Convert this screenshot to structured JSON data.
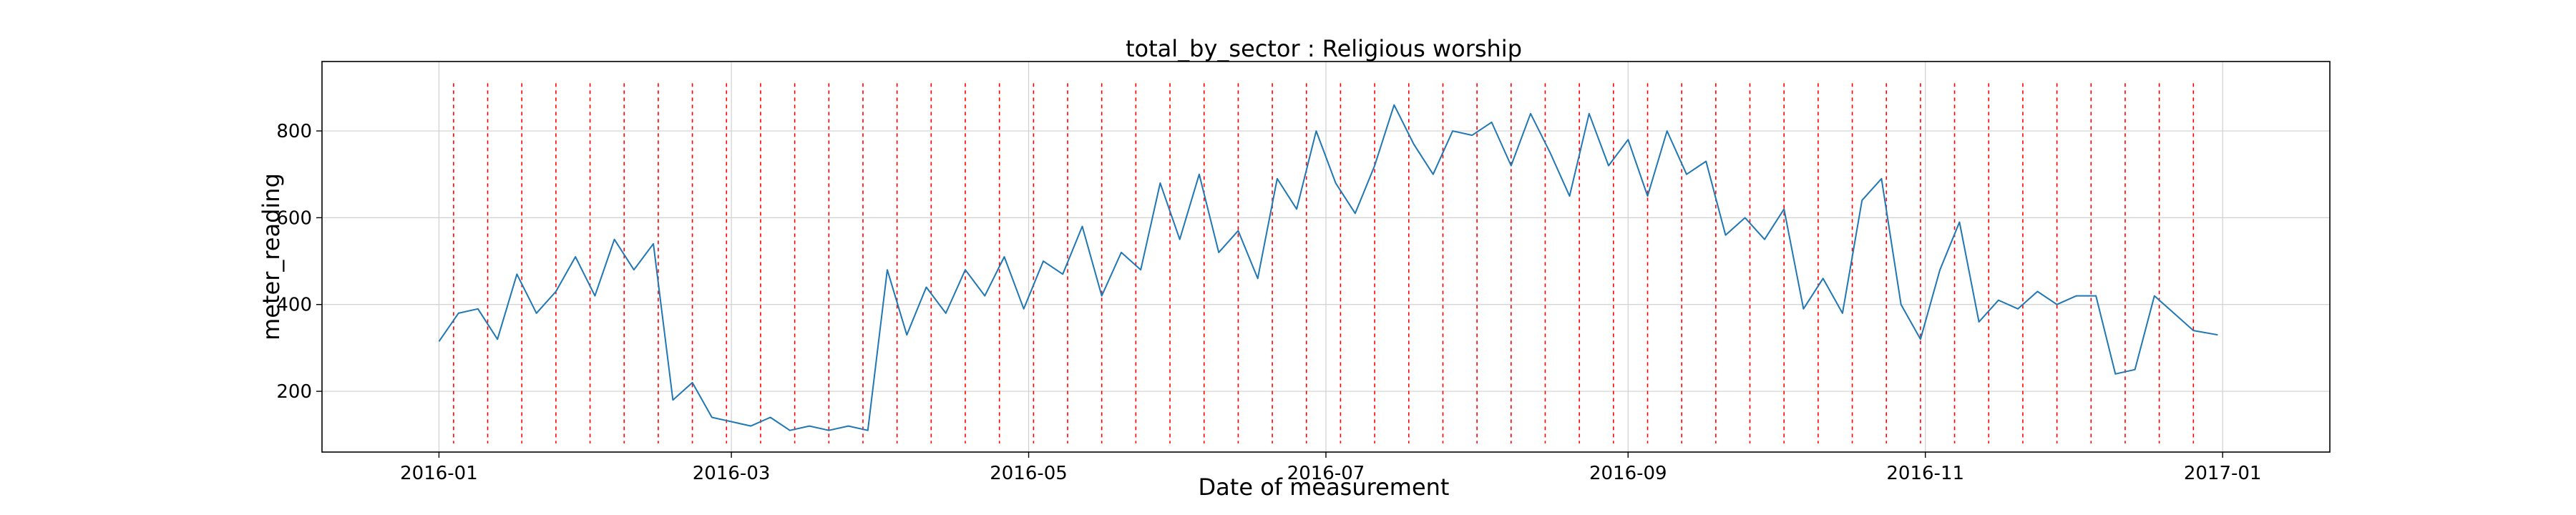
{
  "chart_data": {
    "type": "line",
    "title": "total_by_sector : Religious worship",
    "xlabel": "Date of measurement",
    "ylabel": "meter_reading",
    "x_start": "2016-01-01",
    "x_end": "2016-12-31",
    "xlim": [
      "2015-12-08",
      "2017-01-23"
    ],
    "ylim": [
      60,
      960
    ],
    "x_ticks": [
      "2016-01",
      "2016-03",
      "2016-05",
      "2016-07",
      "2016-09",
      "2016-11",
      "2017-01"
    ],
    "y_ticks": [
      200,
      400,
      600,
      800
    ],
    "grid": true,
    "series": [
      {
        "color": "#1f77b4",
        "x": [
          "2016-01-01",
          "2016-01-05",
          "2016-01-09",
          "2016-01-13",
          "2016-01-17",
          "2016-01-21",
          "2016-01-25",
          "2016-01-29",
          "2016-02-02",
          "2016-02-06",
          "2016-02-10",
          "2016-02-14",
          "2016-02-18",
          "2016-02-22",
          "2016-02-26",
          "2016-03-01",
          "2016-03-05",
          "2016-03-09",
          "2016-03-13",
          "2016-03-17",
          "2016-03-21",
          "2016-03-25",
          "2016-03-29",
          "2016-04-02",
          "2016-04-06",
          "2016-04-10",
          "2016-04-14",
          "2016-04-18",
          "2016-04-22",
          "2016-04-26",
          "2016-04-30",
          "2016-05-04",
          "2016-05-08",
          "2016-05-12",
          "2016-05-16",
          "2016-05-20",
          "2016-05-24",
          "2016-05-28",
          "2016-06-01",
          "2016-06-05",
          "2016-06-09",
          "2016-06-13",
          "2016-06-17",
          "2016-06-21",
          "2016-06-25",
          "2016-06-29",
          "2016-07-03",
          "2016-07-07",
          "2016-07-11",
          "2016-07-15",
          "2016-07-19",
          "2016-07-23",
          "2016-07-27",
          "2016-07-31",
          "2016-08-04",
          "2016-08-08",
          "2016-08-12",
          "2016-08-16",
          "2016-08-20",
          "2016-08-24",
          "2016-08-28",
          "2016-09-01",
          "2016-09-05",
          "2016-09-09",
          "2016-09-13",
          "2016-09-17",
          "2016-09-21",
          "2016-09-25",
          "2016-09-29",
          "2016-10-03",
          "2016-10-07",
          "2016-10-11",
          "2016-10-15",
          "2016-10-19",
          "2016-10-23",
          "2016-10-27",
          "2016-10-31",
          "2016-11-04",
          "2016-11-08",
          "2016-11-12",
          "2016-11-16",
          "2016-11-20",
          "2016-11-24",
          "2016-11-28",
          "2016-12-02",
          "2016-12-06",
          "2016-12-10",
          "2016-12-14",
          "2016-12-18",
          "2016-12-22",
          "2016-12-26",
          "2016-12-31"
        ],
        "values": [
          315,
          380,
          390,
          320,
          470,
          380,
          430,
          510,
          420,
          550,
          480,
          540,
          180,
          220,
          140,
          130,
          120,
          140,
          110,
          120,
          110,
          120,
          110,
          480,
          330,
          440,
          380,
          480,
          420,
          510,
          390,
          500,
          470,
          580,
          420,
          520,
          480,
          680,
          550,
          700,
          520,
          570,
          460,
          690,
          620,
          800,
          680,
          610,
          720,
          860,
          770,
          700,
          800,
          790,
          820,
          720,
          840,
          750,
          650,
          840,
          720,
          780,
          650,
          800,
          700,
          730,
          560,
          600,
          550,
          620,
          390,
          460,
          380,
          640,
          690,
          400,
          320,
          480,
          590,
          360,
          410,
          390,
          430,
          400,
          420,
          420,
          240,
          250,
          420,
          380,
          340,
          330
        ]
      }
    ],
    "reference_lines": [
      "2016-01-04",
      "2016-01-11",
      "2016-01-18",
      "2016-01-25",
      "2016-02-01",
      "2016-02-08",
      "2016-02-15",
      "2016-02-22",
      "2016-02-29",
      "2016-03-07",
      "2016-03-14",
      "2016-03-21",
      "2016-03-28",
      "2016-04-04",
      "2016-04-11",
      "2016-04-18",
      "2016-04-25",
      "2016-05-02",
      "2016-05-09",
      "2016-05-16",
      "2016-05-23",
      "2016-05-30",
      "2016-06-06",
      "2016-06-13",
      "2016-06-20",
      "2016-06-27",
      "2016-07-04",
      "2016-07-11",
      "2016-07-18",
      "2016-07-25",
      "2016-08-01",
      "2016-08-08",
      "2016-08-15",
      "2016-08-22",
      "2016-08-29",
      "2016-09-05",
      "2016-09-12",
      "2016-09-19",
      "2016-09-26",
      "2016-10-03",
      "2016-10-10",
      "2016-10-17",
      "2016-10-24",
      "2016-10-31",
      "2016-11-07",
      "2016-11-14",
      "2016-11-21",
      "2016-11-28",
      "2016-12-05",
      "2016-12-12",
      "2016-12-19",
      "2016-12-26"
    ],
    "reference_line_color": "#ff0000"
  }
}
